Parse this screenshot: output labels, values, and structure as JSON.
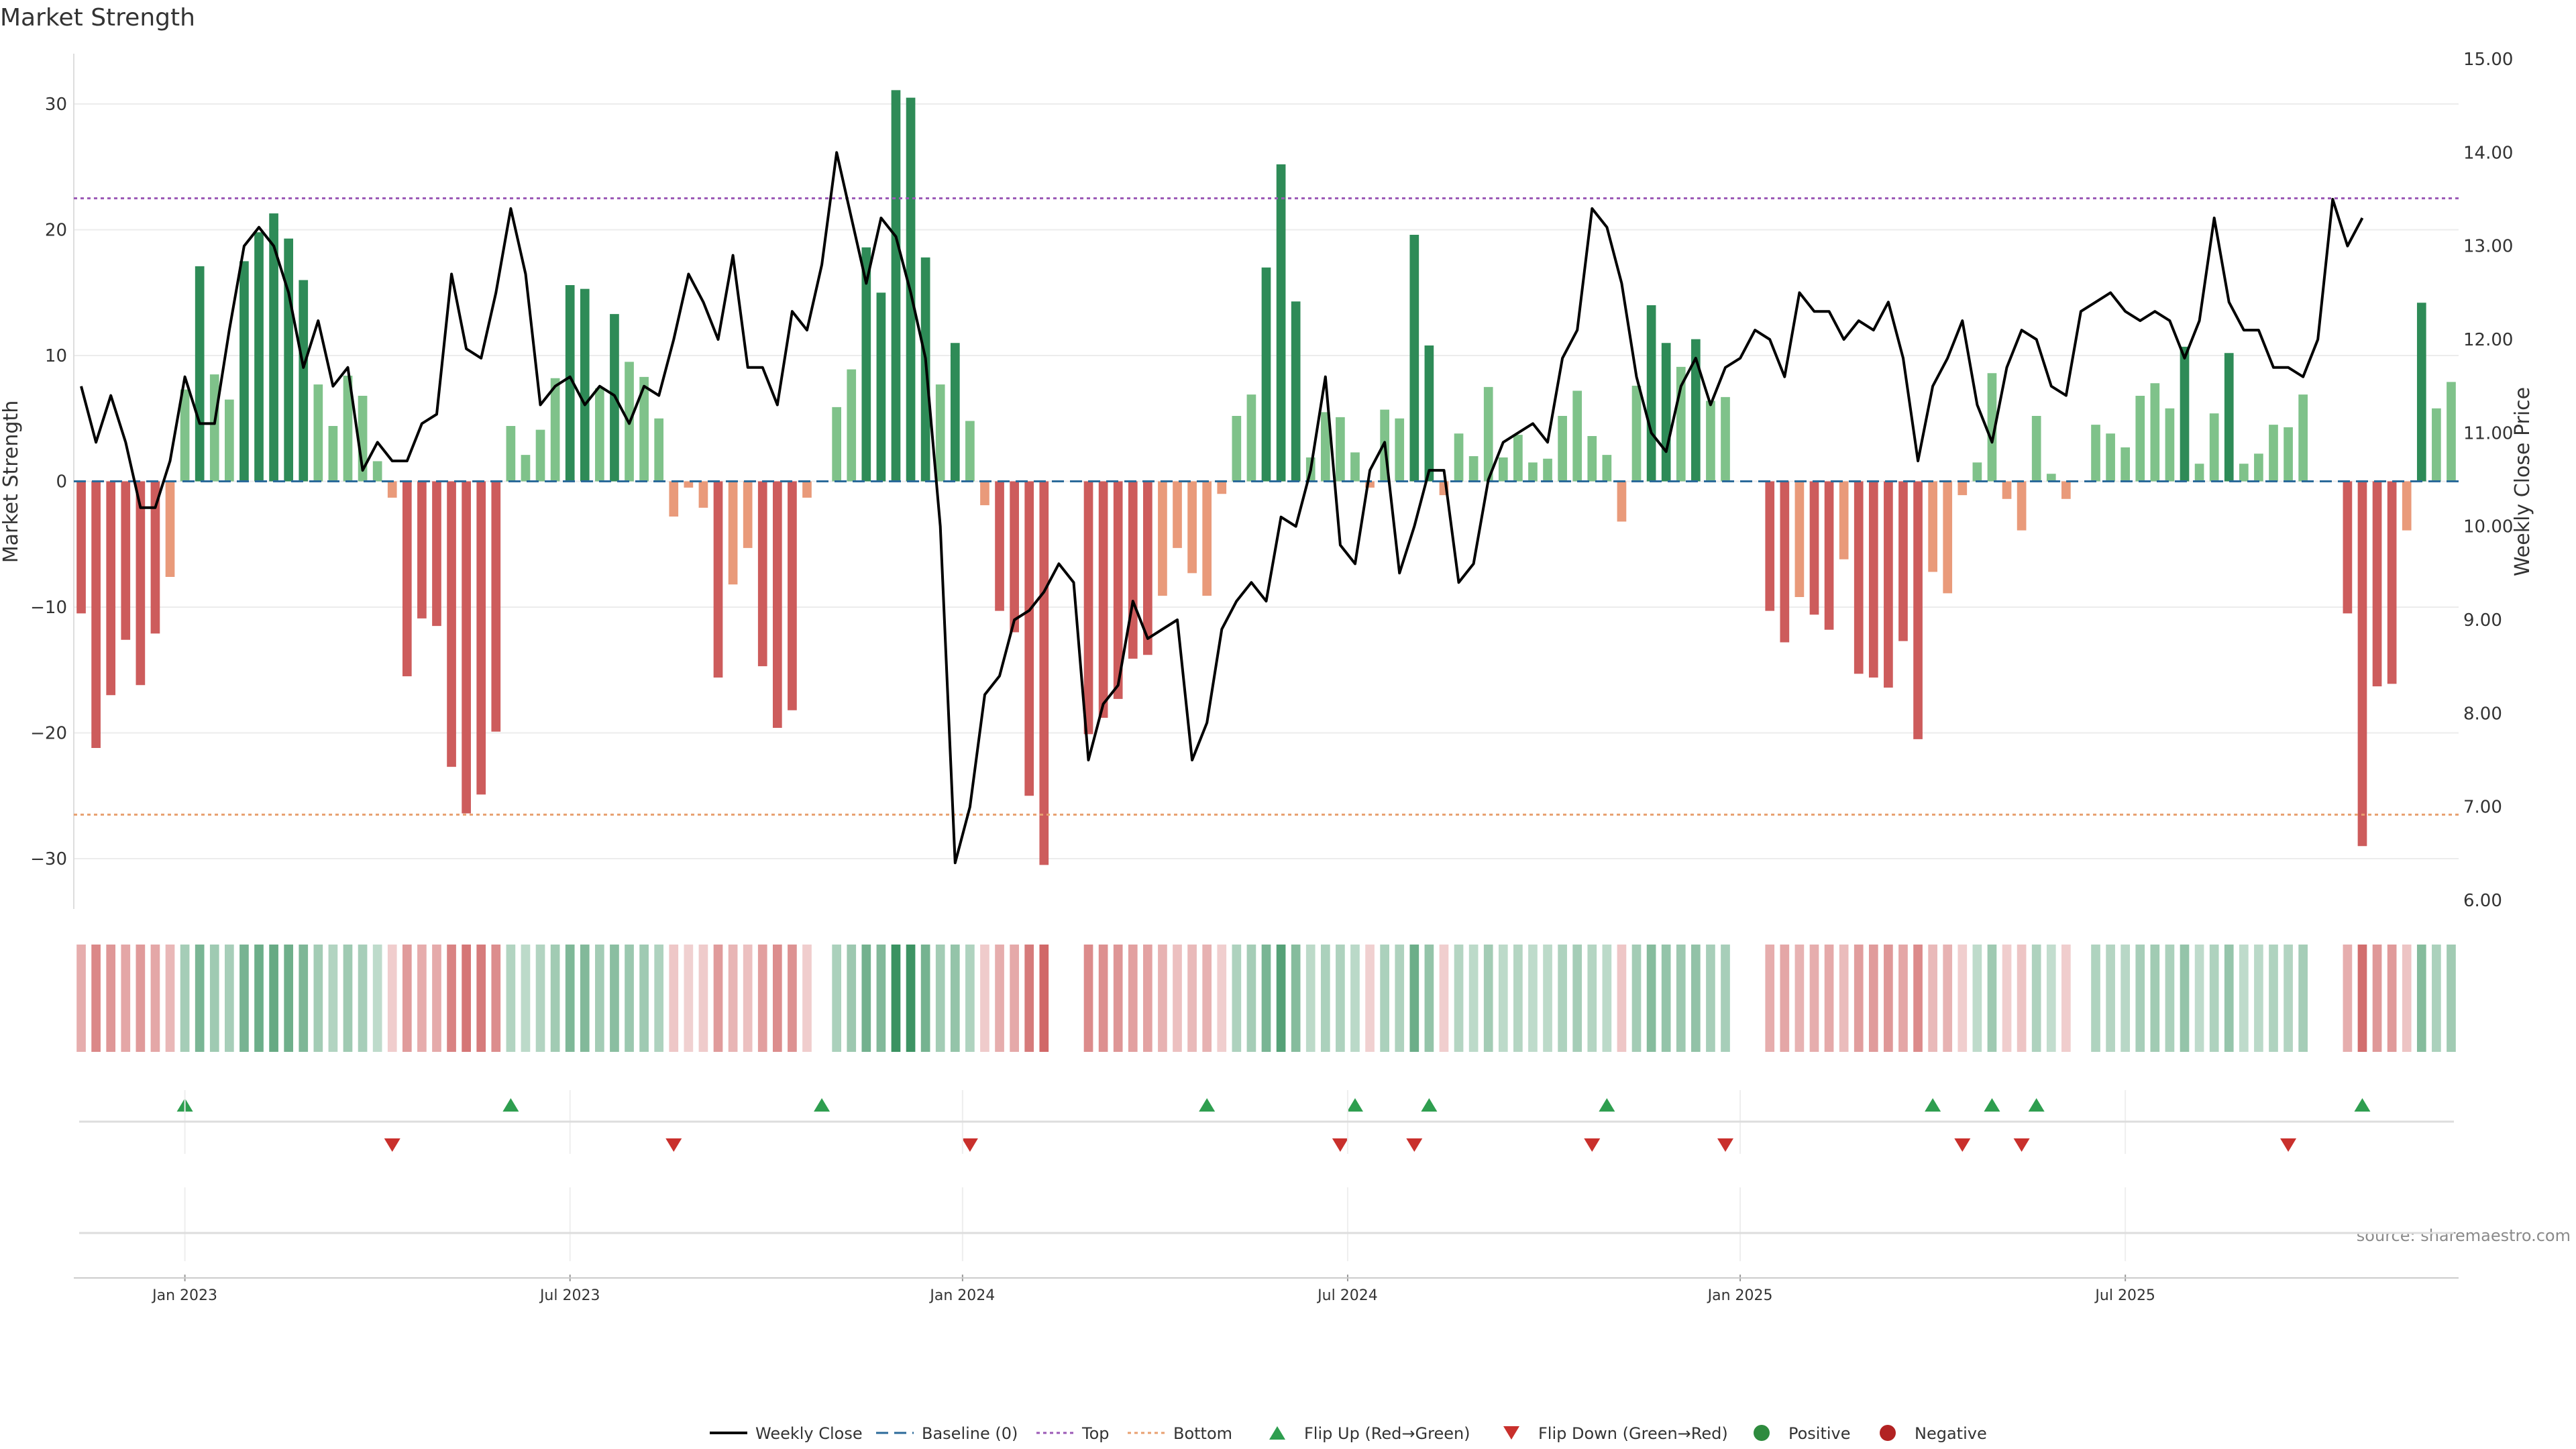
{
  "chart_data": {
    "type": "bar+line",
    "title": "Market Strength",
    "ylabel": "Market Strength",
    "y2label": "Weekly Close Price",
    "ylim": [
      -34,
      34
    ],
    "y2lim": [
      6.0,
      15.0
    ],
    "yticks": [
      -30,
      -20,
      -10,
      0,
      10,
      20,
      30
    ],
    "yticks_labels": [
      "−30",
      "−20",
      "−10",
      "0",
      "10",
      "20",
      "30"
    ],
    "y2ticks": [
      6,
      7,
      8,
      9,
      10,
      11,
      12,
      13,
      14,
      15
    ],
    "y2ticks_labels": [
      "6.00",
      "7.00",
      "8.00",
      "9.00",
      "10.00",
      "11.00",
      "12.00",
      "13.00",
      "14.00",
      "15.00"
    ],
    "top_line": 22.5,
    "bottom_line": -26.5,
    "xaxis": {
      "start": "2022-11-25",
      "weeks": 157
    },
    "x_ticks": [
      {
        "label": "Jan 2023",
        "week": 7
      },
      {
        "label": "Jul 2023",
        "week": 33
      },
      {
        "label": "Jan 2024",
        "week": 59.5
      },
      {
        "label": "Jul 2024",
        "week": 85.5
      },
      {
        "label": "Jan 2025",
        "week": 112
      },
      {
        "label": "Jul 2025",
        "week": 138
      }
    ],
    "strength": [
      -10.5,
      -21.2,
      -17.0,
      -12.6,
      -16.2,
      -12.1,
      -7.6,
      7.3,
      17.1,
      8.5,
      6.5,
      17.5,
      19.8,
      21.3,
      19.3,
      16.0,
      7.7,
      4.4,
      8.4,
      6.8,
      1.6,
      -1.3,
      -15.5,
      -10.9,
      -11.5,
      -22.7,
      -26.4,
      -24.9,
      -19.9,
      4.4,
      2.1,
      4.1,
      8.2,
      15.6,
      15.3,
      7.4,
      13.3,
      9.5,
      8.3,
      5.0,
      -2.8,
      -0.5,
      -2.1,
      -15.6,
      -8.2,
      -5.3,
      -14.7,
      -19.6,
      -18.2,
      -1.3,
      0,
      5.9,
      8.9,
      18.6,
      15.0,
      31.1,
      30.5,
      17.8,
      7.7,
      11.0,
      4.8,
      -1.9,
      -10.3,
      -12.0,
      -25.0,
      -30.5,
      0,
      0,
      -20.1,
      -18.8,
      -17.3,
      -14.1,
      -13.8,
      -9.1,
      -5.3,
      -7.3,
      -9.1,
      -1.0,
      5.2,
      6.9,
      17.0,
      25.2,
      14.3,
      1.9,
      5.5,
      5.1,
      2.3,
      -0.5,
      5.7,
      5.0,
      19.6,
      10.8,
      -1.1,
      3.8,
      2.0,
      7.5,
      1.9,
      3.7,
      1.5,
      1.8,
      5.2,
      7.2,
      3.6,
      2.1,
      -3.2,
      7.6,
      14.0,
      11.0,
      9.1,
      11.3,
      6.4,
      6.7,
      0,
      0,
      -10.3,
      -12.8,
      -9.2,
      -10.6,
      -11.8,
      -6.2,
      -15.3,
      -15.6,
      -16.4,
      -12.7,
      -20.5,
      -7.2,
      -8.9,
      -1.1,
      1.5,
      8.6,
      -1.4,
      -3.9,
      5.2,
      0.6,
      -1.4,
      0,
      4.5,
      3.8,
      2.7,
      6.8,
      7.8,
      5.8,
      10.7,
      1.4,
      5.4,
      10.2,
      1.4,
      2.2,
      4.5,
      4.3,
      6.9,
      0,
      0,
      -10.5,
      -29.0,
      -16.3,
      -16.1,
      -3.9,
      14.2,
      5.8,
      7.9
    ],
    "close": [
      11.5,
      10.9,
      11.4,
      10.9,
      10.2,
      10.2,
      10.7,
      11.6,
      11.1,
      11.1,
      12.1,
      13.0,
      13.2,
      13.0,
      12.5,
      11.7,
      12.2,
      11.5,
      11.7,
      10.6,
      10.9,
      10.7,
      10.7,
      11.1,
      11.2,
      12.7,
      11.9,
      11.8,
      12.5,
      13.4,
      12.7,
      11.3,
      11.5,
      11.6,
      11.3,
      11.5,
      11.4,
      11.1,
      11.5,
      11.4,
      12.0,
      12.7,
      12.4,
      12.0,
      12.9,
      11.7,
      11.7,
      11.3,
      12.3,
      12.1,
      12.8,
      14.0,
      13.3,
      12.6,
      13.3,
      13.1,
      12.5,
      11.8,
      10.0,
      6.4,
      7.0,
      8.2,
      8.4,
      9.0,
      9.1,
      9.3,
      9.6,
      9.4,
      7.5,
      8.1,
      8.3,
      9.2,
      8.8,
      8.9,
      9.0,
      7.5,
      7.9,
      8.9,
      9.2,
      9.4,
      9.2,
      10.1,
      10.0,
      10.6,
      11.6,
      9.8,
      9.6,
      10.6,
      10.9,
      9.5,
      10.0,
      10.6,
      10.6,
      9.4,
      9.6,
      10.5,
      10.9,
      11.0,
      11.1,
      10.9,
      11.8,
      12.1,
      13.4,
      13.2,
      12.6,
      11.6,
      11.0,
      10.8,
      11.5,
      11.8,
      11.3,
      11.7,
      11.8,
      12.1,
      12.0,
      11.6,
      12.5,
      12.3,
      12.3,
      12.0,
      12.2,
      12.1,
      12.4,
      11.8,
      10.7,
      11.5,
      11.8,
      12.2,
      11.3,
      10.9,
      11.7,
      12.1,
      12.0,
      11.5,
      11.4,
      12.3,
      12.4,
      12.5,
      12.3,
      12.2,
      12.3,
      12.2,
      11.8,
      12.2,
      13.3,
      12.4,
      12.1,
      12.1,
      11.7,
      11.7,
      11.6,
      12.0,
      13.5,
      13.0,
      13.3
    ],
    "flip_up_weeks": [
      7,
      29,
      50,
      76,
      86,
      91,
      103,
      125,
      129,
      132,
      154
    ],
    "flip_down_weeks": [
      21,
      40,
      60,
      85,
      90,
      102,
      111,
      127,
      131,
      149
    ],
    "legend": [
      {
        "label": "Weekly Close",
        "kind": "line",
        "color": "#000000"
      },
      {
        "label": "Baseline (0)",
        "kind": "dash",
        "color": "#2b6a9a"
      },
      {
        "label": "Top",
        "kind": "dot",
        "color": "#9b59b6"
      },
      {
        "label": "Bottom",
        "kind": "dot",
        "color": "#e8a070"
      },
      {
        "label": "Flip Up (Red→Green)",
        "kind": "tri-up",
        "color": "#2e9e4f"
      },
      {
        "label": "Flip Down (Green→Red)",
        "kind": "tri-down",
        "color": "#c9302c"
      },
      {
        "label": "Positive",
        "kind": "dot-marker",
        "color": "#2e8b3e"
      },
      {
        "label": "Negative",
        "kind": "dot-marker",
        "color": "#b22222"
      }
    ],
    "source": "source: sharemaestro.com"
  },
  "colors": {
    "pos_strong": "#2e8b57",
    "pos_weak": "#7fc28a",
    "neg_strong": "#cd5c5c",
    "neg_weak": "#e99a7a",
    "line": "#000000",
    "grid": "#ececec"
  }
}
